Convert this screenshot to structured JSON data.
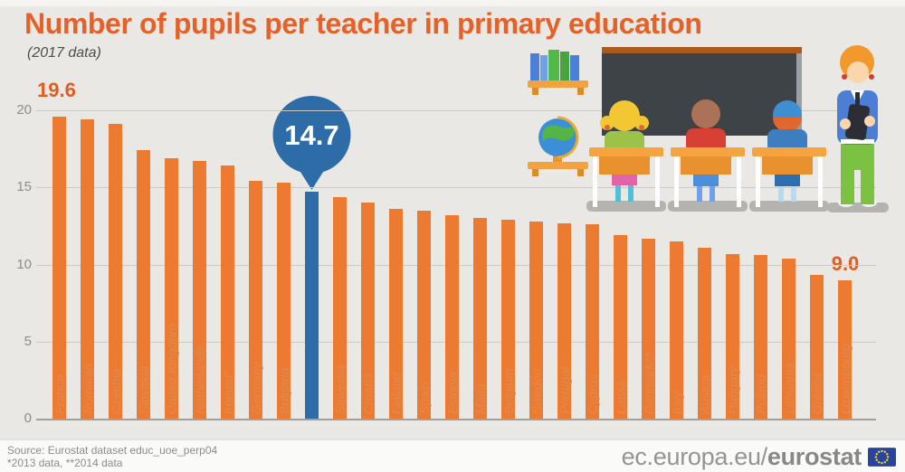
{
  "header": {
    "title": "Number of pupils per teacher in primary education",
    "subtitle": "(2017 data)"
  },
  "chart_data": {
    "type": "bar",
    "title": "Number of pupils per teacher in primary education",
    "subtitle": "(2017 data)",
    "categories": [
      "France",
      "Romania",
      "Czechia",
      "Slovakia",
      "United Kingdom",
      "Netherlands",
      "Ireland*",
      "Germany",
      "Bulgaria",
      "EU",
      "Slovenia",
      "Croatia",
      "Finland",
      "Spain",
      "Estonia",
      "Malta",
      "Belgium",
      "Sweden",
      "Portugal",
      "Cyprus",
      "Latvia",
      "Denmark**",
      "Italy",
      "Austria",
      "Hungary",
      "Poland",
      "Lithuania",
      "Greece",
      "Luxembourg"
    ],
    "values": [
      19.6,
      19.4,
      19.1,
      17.4,
      16.9,
      16.7,
      16.4,
      15.4,
      15.3,
      14.7,
      14.4,
      14.0,
      13.6,
      13.5,
      13.2,
      13.0,
      12.9,
      12.8,
      12.7,
      12.6,
      11.9,
      11.7,
      11.5,
      11.1,
      10.7,
      10.6,
      10.4,
      9.3,
      9.0
    ],
    "highlight_index": 9,
    "highlight_category": "EU",
    "ylim": [
      0,
      20
    ],
    "yticks": [
      0,
      5,
      10,
      15,
      20
    ],
    "grid": true,
    "legend": false,
    "annotations": {
      "max_label": "19.6",
      "highlight_label": "14.7",
      "min_label": "9.0"
    },
    "colors": {
      "bar": "#ec7a30",
      "highlight": "#2e6ca8",
      "category_label": "#e08a52",
      "highlight_category_label": "#2e6ca8",
      "value_label": "#e25c20",
      "axis_label": "#8e8d8a",
      "title": "#e4622a"
    }
  },
  "illustration": {
    "icons": [
      "bookshelf-icon",
      "globe-icon",
      "chalkboard",
      "pupil-at-desk",
      "teacher-with-tablet"
    ]
  },
  "footer": {
    "source_line1": "Source: Eurostat dataset educ_uoe_perp04",
    "source_line2": "*2013 data, **2014 data",
    "brand_regular": "ec.europa.eu/",
    "brand_bold": "eurostat",
    "flag_icon": "eu-flag-icon"
  }
}
